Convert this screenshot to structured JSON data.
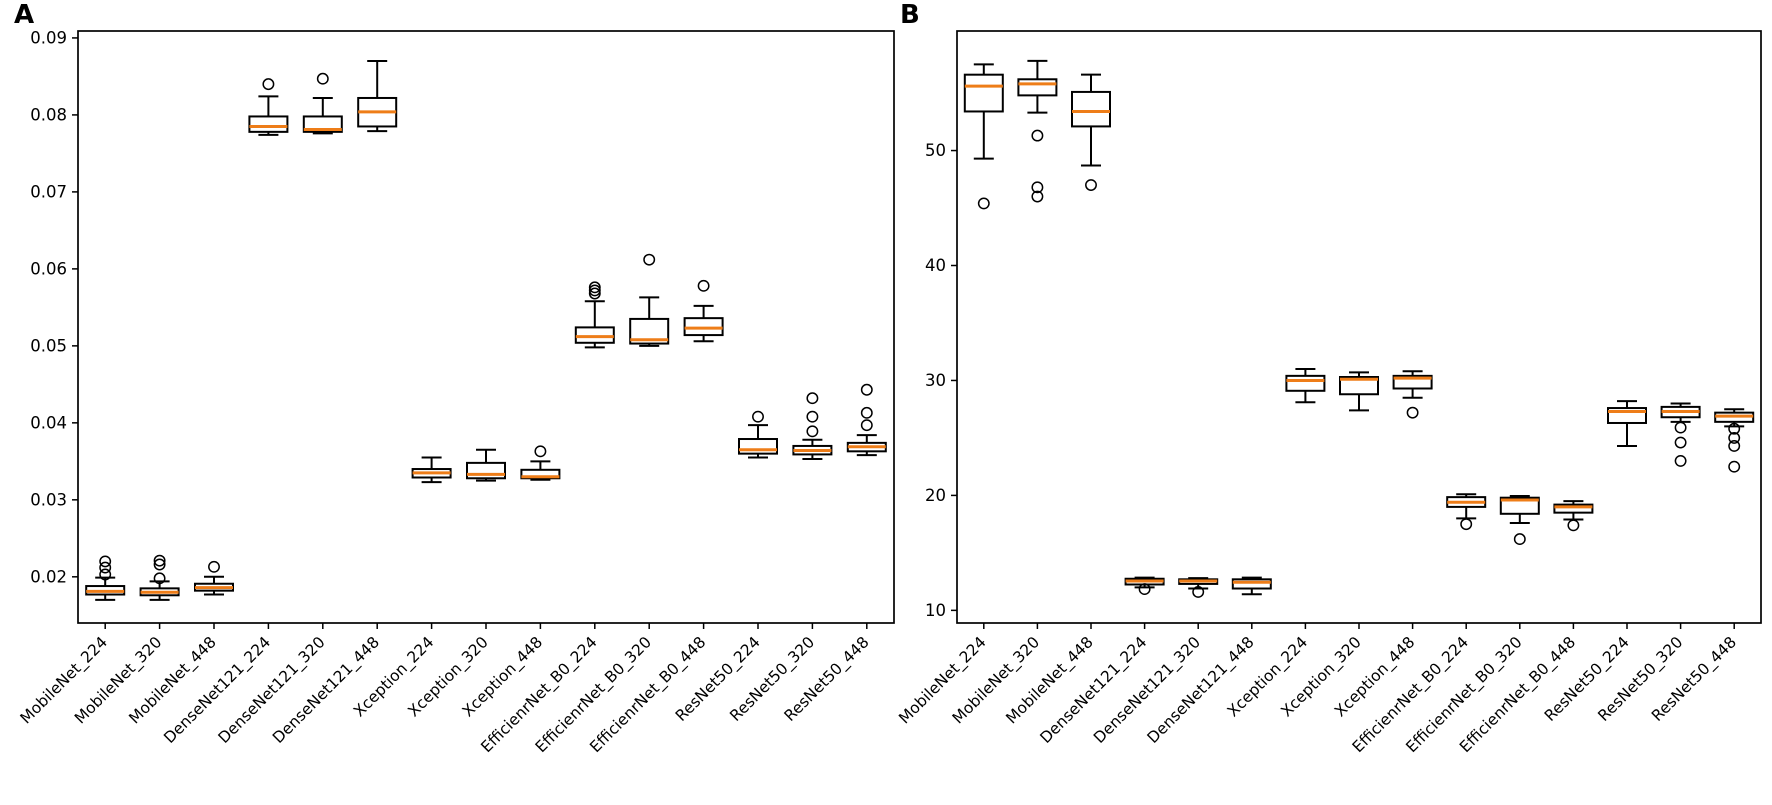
{
  "figure": {
    "background": "#ffffff",
    "text_color": "#000000"
  },
  "chart_data": [
    {
      "id": "A",
      "type": "box",
      "title": "",
      "xlabel": "",
      "ylabel": "",
      "legend": "none",
      "grid": false,
      "ylim": [
        0.014,
        0.0909
      ],
      "yticks": [
        0.02,
        0.03,
        0.04,
        0.05,
        0.06,
        0.07,
        0.08,
        0.09
      ],
      "ytick_labels": [
        "0.02",
        "0.03",
        "0.04",
        "0.05",
        "0.06",
        "0.07",
        "0.08",
        "0.09"
      ],
      "x_tick_rotation_deg": 45,
      "median_color": "#ee7d18",
      "box_stroke_color": "#000000",
      "categories": [
        "MobileNet_224",
        "MobileNet_320",
        "MobileNet_448",
        "DenseNet121_224",
        "DenseNet121_320",
        "DenseNet121_448",
        "Xception_224",
        "Xception_320",
        "Xception_448",
        "EfficienrNet_B0_224",
        "EfficienrNet_B0_320",
        "EfficienrNet_B0_448",
        "ResNet50_224",
        "ResNet50_320",
        "ResNet50_448"
      ],
      "boxes": [
        {
          "whislo": 0.017,
          "q1": 0.0177,
          "med": 0.0181,
          "q3": 0.0188,
          "whishi": 0.0199,
          "fliers": [
            0.0203,
            0.0212,
            0.022
          ]
        },
        {
          "whislo": 0.017,
          "q1": 0.0176,
          "med": 0.018,
          "q3": 0.0185,
          "whishi": 0.0194,
          "fliers": [
            0.0198,
            0.0216,
            0.0221
          ]
        },
        {
          "whislo": 0.0177,
          "q1": 0.0182,
          "med": 0.0186,
          "q3": 0.0191,
          "whishi": 0.02,
          "fliers": [
            0.0213
          ]
        },
        {
          "whislo": 0.0774,
          "q1": 0.0778,
          "med": 0.0785,
          "q3": 0.0798,
          "whishi": 0.0824,
          "fliers": [
            0.084
          ]
        },
        {
          "whislo": 0.0776,
          "q1": 0.0778,
          "med": 0.0781,
          "q3": 0.0798,
          "whishi": 0.0822,
          "fliers": [
            0.0847
          ]
        },
        {
          "whislo": 0.0779,
          "q1": 0.0785,
          "med": 0.0804,
          "q3": 0.0822,
          "whishi": 0.087,
          "fliers": []
        },
        {
          "whislo": 0.0323,
          "q1": 0.0329,
          "med": 0.0335,
          "q3": 0.034,
          "whishi": 0.0355,
          "fliers": []
        },
        {
          "whislo": 0.0325,
          "q1": 0.0328,
          "med": 0.0333,
          "q3": 0.0348,
          "whishi": 0.0365,
          "fliers": []
        },
        {
          "whislo": 0.0326,
          "q1": 0.0328,
          "med": 0.033,
          "q3": 0.0339,
          "whishi": 0.035,
          "fliers": [
            0.0363
          ]
        },
        {
          "whislo": 0.0498,
          "q1": 0.0504,
          "med": 0.0512,
          "q3": 0.0524,
          "whishi": 0.0558,
          "fliers": [
            0.0568,
            0.0572,
            0.0576
          ]
        },
        {
          "whislo": 0.05,
          "q1": 0.0503,
          "med": 0.0508,
          "q3": 0.0535,
          "whishi": 0.0563,
          "fliers": [
            0.0612
          ]
        },
        {
          "whislo": 0.0506,
          "q1": 0.0514,
          "med": 0.0523,
          "q3": 0.0536,
          "whishi": 0.0552,
          "fliers": [
            0.0578
          ]
        },
        {
          "whislo": 0.0355,
          "q1": 0.036,
          "med": 0.0365,
          "q3": 0.0379,
          "whishi": 0.0397,
          "fliers": [
            0.0408
          ]
        },
        {
          "whislo": 0.0353,
          "q1": 0.0359,
          "med": 0.0364,
          "q3": 0.037,
          "whishi": 0.0378,
          "fliers": [
            0.0389,
            0.0408,
            0.0432
          ]
        },
        {
          "whislo": 0.0358,
          "q1": 0.0363,
          "med": 0.0369,
          "q3": 0.0374,
          "whishi": 0.0384,
          "fliers": [
            0.0397,
            0.0413,
            0.0443
          ]
        }
      ]
    },
    {
      "id": "B",
      "type": "box",
      "title": "",
      "xlabel": "",
      "ylabel": "",
      "legend": "none",
      "grid": false,
      "ylim": [
        8.9,
        60.4
      ],
      "yticks": [
        10,
        20,
        30,
        40,
        50
      ],
      "ytick_labels": [
        "10",
        "20",
        "30",
        "40",
        "50"
      ],
      "x_tick_rotation_deg": 45,
      "median_color": "#ee7d18",
      "box_stroke_color": "#000000",
      "categories": [
        "MobileNet_224",
        "MobileNet_320",
        "MobileNet_448",
        "DenseNet121_224",
        "DenseNet121_320",
        "DenseNet121_448",
        "Xception_224",
        "Xception_320",
        "Xception_448",
        "EfficienrNet_B0_224",
        "EfficienrNet_B0_320",
        "EfficienrNet_B0_448",
        "ResNet50_224",
        "ResNet50_320",
        "ResNet50_448"
      ],
      "boxes": [
        {
          "whislo": 49.3,
          "q1": 53.4,
          "med": 55.6,
          "q3": 56.6,
          "whishi": 57.5,
          "fliers": [
            45.4
          ]
        },
        {
          "whislo": 53.3,
          "q1": 54.8,
          "med": 55.8,
          "q3": 56.2,
          "whishi": 57.8,
          "fliers": [
            51.3,
            46.8,
            46.0
          ]
        },
        {
          "whislo": 48.7,
          "q1": 52.1,
          "med": 53.4,
          "q3": 55.1,
          "whishi": 56.6,
          "fliers": [
            47.0
          ]
        },
        {
          "whislo": 12.0,
          "q1": 12.25,
          "med": 12.55,
          "q3": 12.75,
          "whishi": 12.85,
          "fliers": [
            11.85
          ]
        },
        {
          "whislo": 11.9,
          "q1": 12.3,
          "med": 12.55,
          "q3": 12.7,
          "whishi": 12.8,
          "fliers": [
            11.6
          ]
        },
        {
          "whislo": 11.4,
          "q1": 11.9,
          "med": 12.45,
          "q3": 12.7,
          "whishi": 12.85,
          "fliers": []
        },
        {
          "whislo": 28.1,
          "q1": 29.1,
          "med": 30.0,
          "q3": 30.4,
          "whishi": 31.0,
          "fliers": []
        },
        {
          "whislo": 27.4,
          "q1": 28.8,
          "med": 30.1,
          "q3": 30.3,
          "whishi": 30.7,
          "fliers": []
        },
        {
          "whislo": 28.5,
          "q1": 29.3,
          "med": 30.2,
          "q3": 30.4,
          "whishi": 30.8,
          "fliers": [
            27.2
          ]
        },
        {
          "whislo": 18.0,
          "q1": 19.0,
          "med": 19.4,
          "q3": 19.85,
          "whishi": 20.1,
          "fliers": [
            17.5
          ]
        },
        {
          "whislo": 17.6,
          "q1": 18.4,
          "med": 19.6,
          "q3": 19.8,
          "whishi": 19.95,
          "fliers": [
            16.2
          ]
        },
        {
          "whislo": 17.9,
          "q1": 18.5,
          "med": 19.0,
          "q3": 19.2,
          "whishi": 19.5,
          "fliers": [
            17.4
          ]
        },
        {
          "whislo": 24.3,
          "q1": 26.3,
          "med": 27.3,
          "q3": 27.6,
          "whishi": 28.2,
          "fliers": []
        },
        {
          "whislo": 26.4,
          "q1": 26.8,
          "med": 27.3,
          "q3": 27.7,
          "whishi": 28.0,
          "fliers": [
            25.9,
            24.6,
            23.0
          ]
        },
        {
          "whislo": 26.0,
          "q1": 26.4,
          "med": 26.9,
          "q3": 27.2,
          "whishi": 27.5,
          "fliers": [
            25.8,
            25.0,
            24.3,
            22.5
          ]
        }
      ]
    }
  ]
}
